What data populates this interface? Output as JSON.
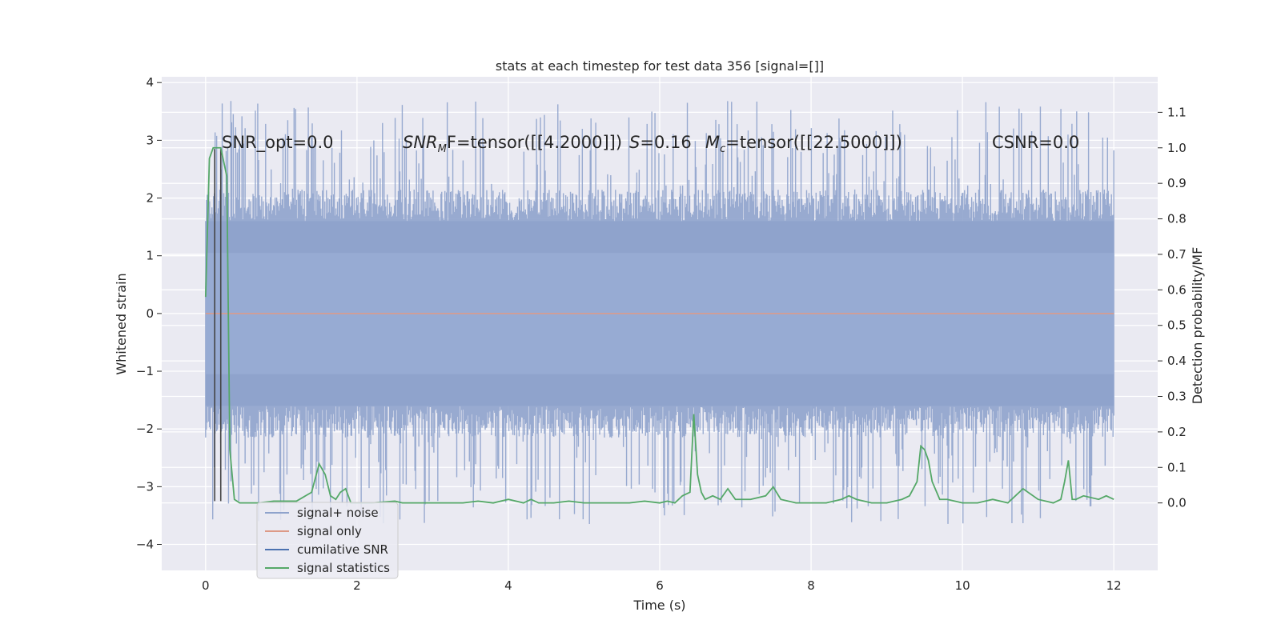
{
  "chart_data": {
    "type": "line",
    "title": "stats at each timestep for test data 356 [signal=[]]",
    "xlabel": "Time (s)",
    "ylabel": "Whitened strain",
    "y2label": "Detection probability/MF",
    "xlim": [
      -0.58,
      12.58
    ],
    "ylim": [
      -4.45,
      4.1
    ],
    "y2lim": [
      -0.19,
      1.2
    ],
    "x_ticks": [
      0,
      2,
      4,
      6,
      8,
      10,
      12
    ],
    "x_tick_labels": [
      "0",
      "2",
      "4",
      "6",
      "8",
      "10",
      "12"
    ],
    "y_ticks": [
      -4,
      -3,
      -2,
      -1,
      0,
      1,
      2,
      3,
      4
    ],
    "y_tick_labels": [
      "−4",
      "−3",
      "−2",
      "−1",
      "0",
      "1",
      "2",
      "3",
      "4"
    ],
    "y2_ticks": [
      0.0,
      0.1,
      0.2,
      0.3,
      0.4,
      0.5,
      0.6,
      0.7,
      0.8,
      0.9,
      1.0,
      1.1
    ],
    "y2_tick_labels": [
      "0.0",
      "0.1",
      "0.2",
      "0.3",
      "0.4",
      "0.5",
      "0.6",
      "0.7",
      "0.8",
      "0.9",
      "1.0",
      "1.1"
    ],
    "grid": true,
    "legend_position": "lower-left",
    "legend": [
      {
        "label": "signal+ noise",
        "color": "#8fa3cc"
      },
      {
        "label": "signal only",
        "color": "#dd9a87"
      },
      {
        "label": "cumilative SNR",
        "color": "#4c72b0"
      },
      {
        "label": "signal statistics",
        "color": "#55a868"
      }
    ],
    "annotations": {
      "snr_opt": "SNR_opt=0.0",
      "snr_mf_main": "SNR",
      "snr_mf_sub": "M",
      "snr_mf_rest": "F=tensor([[4.2000]])",
      "s_sym": "S",
      "s_val": "=0.16",
      "mc_sym": "M",
      "mc_sub": "c",
      "mc_val": "=tensor([[22.5000]])",
      "csnr": "CSNR=0.0"
    },
    "series": [
      {
        "name": "signal+ noise",
        "axis": "left",
        "color": "#8fa3cc",
        "x_range": [
          0,
          12
        ],
        "band_low": -1.6,
        "band_high": 1.6,
        "core_low": -1.05,
        "core_high": 1.05,
        "peak_max": 3.7,
        "trough_min": -3.65
      },
      {
        "name": "signal only",
        "axis": "left",
        "color": "#dd9a87",
        "x": [
          0,
          12
        ],
        "y": [
          0,
          0
        ]
      },
      {
        "name": "cumilative SNR",
        "axis": "left",
        "color": "#4c72b0",
        "x": [],
        "y": []
      },
      {
        "name": "signal statistics",
        "axis": "right",
        "color": "#55a868",
        "x": [
          0.0,
          0.05,
          0.1,
          0.2,
          0.28,
          0.32,
          0.38,
          0.45,
          0.55,
          0.7,
          0.9,
          1.0,
          1.2,
          1.4,
          1.5,
          1.58,
          1.65,
          1.72,
          1.78,
          1.85,
          1.92,
          2.0,
          2.2,
          2.5,
          2.6,
          2.8,
          3.0,
          3.2,
          3.4,
          3.6,
          3.8,
          4.0,
          4.2,
          4.3,
          4.4,
          4.6,
          4.8,
          5.0,
          5.2,
          5.4,
          5.6,
          5.8,
          6.0,
          6.1,
          6.2,
          6.3,
          6.4,
          6.45,
          6.5,
          6.55,
          6.6,
          6.7,
          6.8,
          6.9,
          7.0,
          7.2,
          7.4,
          7.5,
          7.6,
          7.8,
          8.0,
          8.2,
          8.4,
          8.5,
          8.6,
          8.8,
          9.0,
          9.2,
          9.3,
          9.4,
          9.45,
          9.5,
          9.55,
          9.6,
          9.7,
          9.8,
          10.0,
          10.2,
          10.4,
          10.6,
          10.8,
          11.0,
          11.2,
          11.3,
          11.35,
          11.4,
          11.45,
          11.5,
          11.6,
          11.8,
          11.9,
          12.0
        ],
        "y": [
          0.58,
          0.97,
          1.0,
          1.0,
          0.92,
          0.15,
          0.01,
          0.0,
          0.0,
          0.0,
          0.005,
          0.005,
          0.005,
          0.03,
          0.11,
          0.08,
          0.02,
          0.01,
          0.03,
          0.04,
          0.0,
          0.0,
          0.0,
          0.005,
          0.0,
          0.0,
          0.0,
          0.0,
          0.0,
          0.005,
          0.0,
          0.01,
          0.0,
          0.01,
          0.0,
          0.0,
          0.005,
          0.0,
          0.0,
          0.0,
          0.0,
          0.005,
          0.0,
          0.005,
          0.0,
          0.02,
          0.03,
          0.25,
          0.08,
          0.03,
          0.01,
          0.02,
          0.01,
          0.04,
          0.01,
          0.01,
          0.02,
          0.045,
          0.01,
          0.0,
          0.0,
          0.0,
          0.01,
          0.02,
          0.01,
          0.0,
          0.0,
          0.01,
          0.02,
          0.06,
          0.16,
          0.15,
          0.12,
          0.06,
          0.01,
          0.01,
          0.0,
          0.0,
          0.01,
          0.0,
          0.04,
          0.01,
          0.0,
          0.01,
          0.06,
          0.12,
          0.01,
          0.01,
          0.02,
          0.01,
          0.02,
          0.01
        ]
      }
    ],
    "vertical_markers": {
      "color": "#444444",
      "x": [
        0.12,
        0.2
      ],
      "y_range": [
        -3.25,
        2.85
      ]
    }
  }
}
